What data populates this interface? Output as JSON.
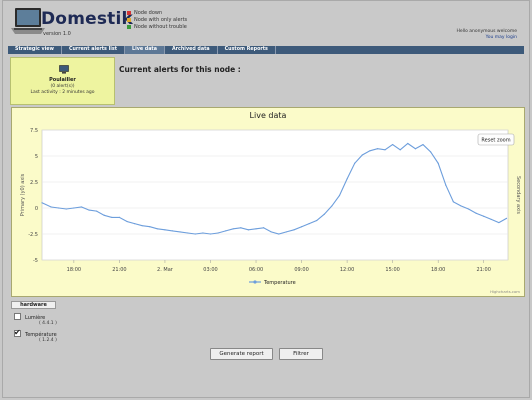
{
  "app": {
    "logo": "Domestik",
    "version": "version 1.0"
  },
  "legend": [
    {
      "label": "Node down",
      "color": "#d33333"
    },
    {
      "label": "Node with only alerts",
      "color": "#e0a82a"
    },
    {
      "label": "Node without trouble",
      "color": "#3a9a3a"
    }
  ],
  "user": {
    "line1": "Hello anonymous welcome",
    "logout": "You may login"
  },
  "nav": {
    "items": [
      {
        "label": "Strategic view"
      },
      {
        "label": "Current alerts list"
      },
      {
        "label": "Live data"
      },
      {
        "label": "Archived data"
      },
      {
        "label": "Custom Reports"
      }
    ],
    "active": 2
  },
  "node": {
    "name": "Poulailler",
    "status": "(0 alert(s))",
    "activity": "Last activity : 2 minutes ago"
  },
  "alerts": {
    "title": "Current alerts for this node :"
  },
  "live": {
    "title": "Live data",
    "reset_zoom": "Reset zoom",
    "credit": "Highcharts.com",
    "y_label_left": "Primary (y0) axis",
    "y_label_right": "Secondary axis"
  },
  "chart_data": {
    "type": "line",
    "title": "Live data",
    "ylabel": "Primary (y0) axis",
    "ylim": [
      -5,
      7.5
    ],
    "y_ticks": [
      "7.5",
      "5",
      "2.5",
      "0",
      "-2.5",
      "-5"
    ],
    "x_ticks": [
      "18:00",
      "21:00",
      "2. Mar",
      "03:00",
      "06:00",
      "09:00",
      "12:00",
      "15:00",
      "18:00",
      "21:00"
    ],
    "series": [
      {
        "name": "Temperature",
        "color": "#6d9edc",
        "x": [
          15.9,
          16.5,
          17.0,
          17.5,
          18.0,
          18.5,
          19.0,
          19.5,
          20.0,
          20.5,
          21.0,
          21.5,
          22.0,
          22.5,
          23.0,
          23.5,
          24.0,
          24.5,
          25.0,
          25.5,
          26.0,
          26.5,
          27.0,
          27.5,
          28.0,
          28.5,
          29.0,
          29.5,
          30.0,
          30.5,
          31.0,
          31.5,
          32.0,
          32.5,
          33.0,
          33.5,
          34.0,
          34.5,
          35.0,
          35.5,
          36.0,
          36.5,
          37.0,
          37.5,
          38.0,
          38.5,
          39.0,
          39.5,
          40.0,
          40.5,
          41.0,
          41.5,
          42.0,
          42.5,
          43.0,
          43.5,
          44.0,
          44.5,
          45.0,
          45.5,
          46.0,
          46.5
        ],
        "y": [
          0.5,
          0.1,
          0.0,
          -0.1,
          0.0,
          0.1,
          -0.2,
          -0.3,
          -0.7,
          -0.9,
          -0.9,
          -1.3,
          -1.5,
          -1.7,
          -1.8,
          -2.0,
          -2.1,
          -2.2,
          -2.3,
          -2.4,
          -2.5,
          -2.4,
          -2.5,
          -2.4,
          -2.2,
          -2.0,
          -1.9,
          -2.1,
          -2.0,
          -1.9,
          -2.3,
          -2.5,
          -2.3,
          -2.1,
          -1.8,
          -1.5,
          -1.2,
          -0.6,
          0.2,
          1.2,
          2.8,
          4.3,
          5.1,
          5.5,
          5.7,
          5.6,
          6.1,
          5.6,
          6.2,
          5.7,
          6.1,
          5.4,
          4.3,
          2.2,
          0.6,
          0.2,
          -0.1,
          -0.5,
          -0.8,
          -1.1,
          -1.4,
          -1.0
        ]
      }
    ],
    "legend": {
      "position": "bottom-center"
    },
    "grid": true
  },
  "hardware": {
    "title": "hardware",
    "items": [
      {
        "name": "Lumière",
        "id": "( 4.4.1 )",
        "checked": false
      },
      {
        "name": "Température",
        "id": "( 1.2.4 )",
        "checked": true
      }
    ]
  },
  "buttons": {
    "generate": "Generate report",
    "filter": "Filtrer"
  }
}
